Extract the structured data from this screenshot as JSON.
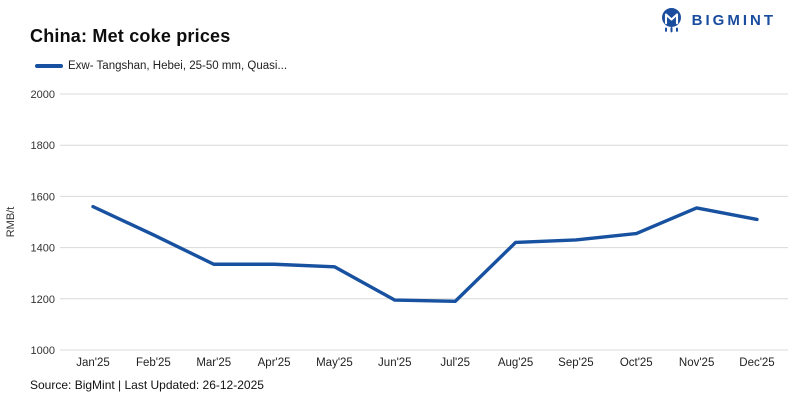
{
  "header": {
    "title": "China: Met coke prices",
    "brand": "BIGMINT"
  },
  "footer": {
    "text": "Source: BigMint | Last Updated: 26-12-2025"
  },
  "colors": {
    "accent_blue": "#17519f",
    "logo_blue": "#1b4d9e",
    "grid": "#d9d9d9",
    "tick_text": "#333333",
    "title_text": "#0d0d0d"
  },
  "icons": {
    "logo_icon": "bigmint-m-icon"
  },
  "chart_data": {
    "type": "line",
    "title": "China: Met coke prices",
    "categories": [
      "Jan'25",
      "Feb'25",
      "Mar'25",
      "Apr'25",
      "May'25",
      "Jun'25",
      "Jul'25",
      "Aug'25",
      "Sep'25",
      "Oct'25",
      "Nov'25",
      "Dec'25"
    ],
    "series": [
      {
        "name": "Exw- Tangshan, Hebei, 25-50 mm, Quasi...",
        "values": [
          1560,
          1450,
          1335,
          1335,
          1325,
          1195,
          1190,
          1420,
          1430,
          1455,
          1555,
          1510
        ]
      }
    ],
    "xlabel": "",
    "ylabel": "RMB/t",
    "ylim": [
      1000,
      2000
    ],
    "ytick_step": 200,
    "grid": true,
    "legend_position": "top-left"
  }
}
